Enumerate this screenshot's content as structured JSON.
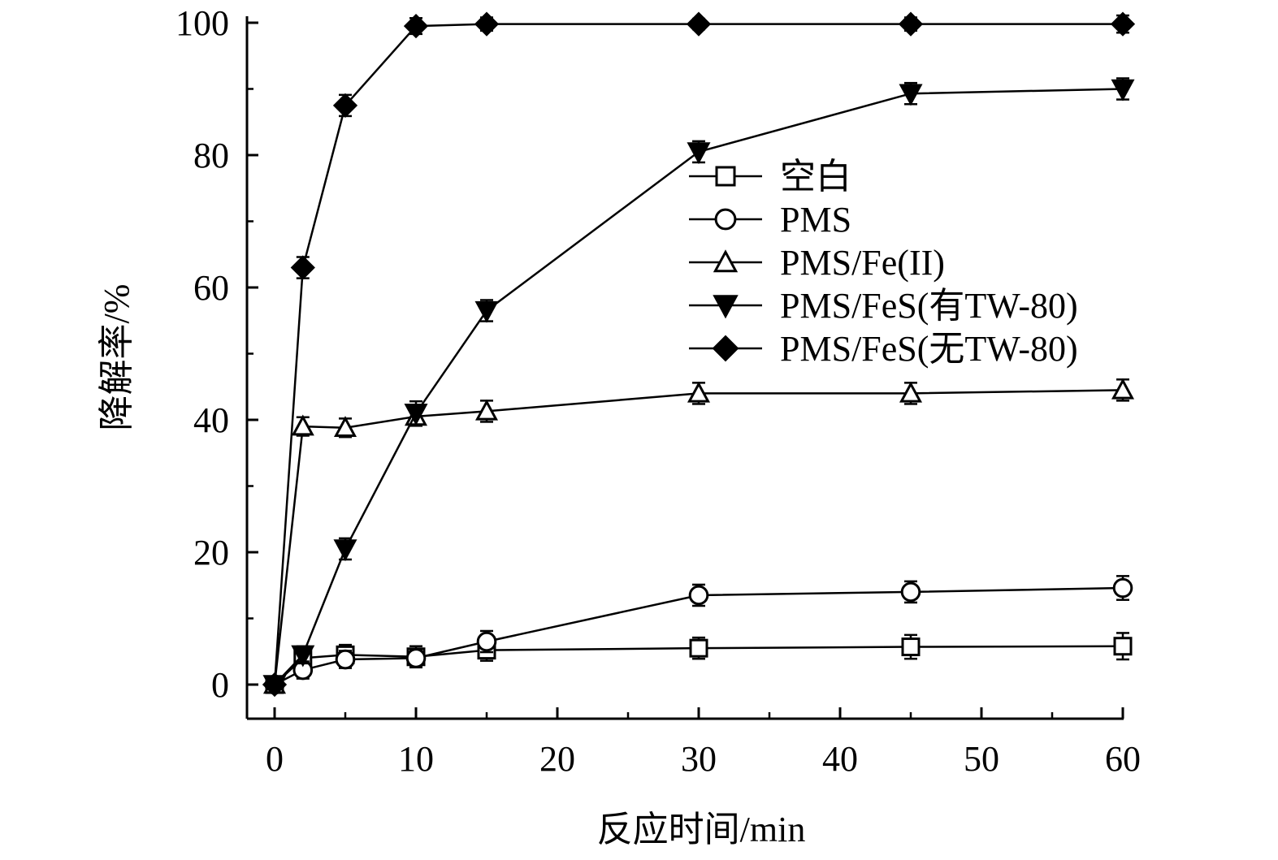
{
  "chart_data": {
    "type": "line",
    "title": "",
    "xlabel": "反应时间/min",
    "ylabel": "降解率/%",
    "xlim": [
      -2,
      60
    ],
    "ylim": [
      -5,
      100
    ],
    "xticks": [
      0,
      10,
      20,
      30,
      40,
      50,
      60
    ],
    "xtick_labels": [
      "0",
      "10",
      "20",
      "30",
      "40",
      "50",
      "60"
    ],
    "yticks": [
      0,
      20,
      40,
      60,
      80,
      100
    ],
    "ytick_labels": [
      "0",
      "20",
      "40",
      "60",
      "80",
      "100"
    ],
    "grid": false,
    "legend_position": "upper-right",
    "x": [
      0,
      2,
      5,
      10,
      15,
      30,
      45,
      60
    ],
    "series": [
      {
        "name": "空白",
        "marker": "open-square",
        "values": [
          0,
          4.0,
          4.5,
          4.2,
          5.2,
          5.5,
          5.7,
          5.8
        ],
        "errors": [
          0.6,
          1.5,
          1.5,
          1.6,
          1.6,
          1.6,
          1.8,
          2.0
        ]
      },
      {
        "name": "PMS",
        "marker": "open-circle",
        "values": [
          0,
          2.2,
          3.8,
          4.0,
          6.5,
          13.5,
          14.0,
          14.6
        ],
        "errors": [
          0.6,
          1.3,
          1.3,
          1.3,
          1.6,
          1.6,
          1.6,
          1.8
        ]
      },
      {
        "name": "PMS/Fe(II)",
        "marker": "open-triangle-up",
        "values": [
          0,
          39.0,
          38.8,
          40.5,
          41.3,
          44.0,
          44.0,
          44.5
        ],
        "errors": [
          0.6,
          1.4,
          1.4,
          1.4,
          1.6,
          1.6,
          1.6,
          1.6
        ]
      },
      {
        "name": "PMS/FeS(有TW-80)",
        "marker": "filled-triangle-down",
        "values": [
          0,
          4.5,
          20.5,
          41.0,
          56.5,
          80.5,
          89.3,
          90.0
        ],
        "errors": [
          0.6,
          1.3,
          1.6,
          1.8,
          1.6,
          1.6,
          1.6,
          1.6
        ]
      },
      {
        "name": "PMS/FeS(无TW-80)",
        "marker": "filled-diamond",
        "values": [
          0,
          63.0,
          87.5,
          99.5,
          99.8,
          99.8,
          99.8,
          99.8
        ],
        "errors": [
          0.6,
          1.6,
          1.6,
          1.2,
          1.0,
          0.8,
          1.0,
          1.3
        ]
      }
    ]
  }
}
